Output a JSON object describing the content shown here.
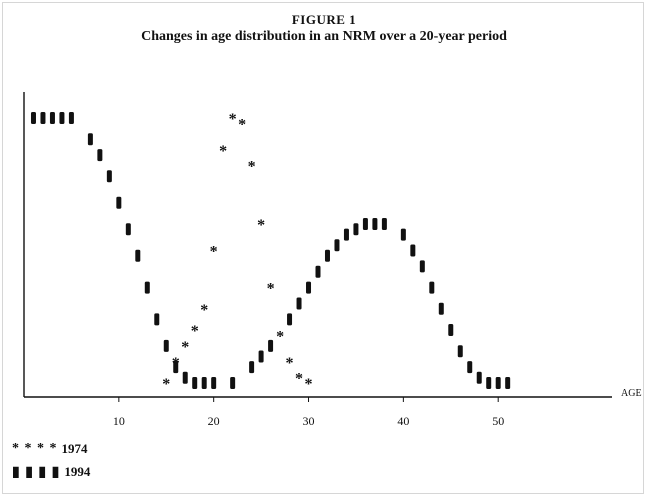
{
  "figure_label": "FIGURE 1",
  "chart_data": {
    "type": "line",
    "title": "Changes in age distribution in an NRM over a 20-year period",
    "xlabel": "AGE",
    "ylabel": "",
    "xlim": [
      0,
      62
    ],
    "ylim": [
      0,
      100
    ],
    "x_ticks": [
      10,
      20,
      30,
      40,
      50
    ],
    "x_tick_labels": [
      "10",
      "20",
      "30",
      "40",
      "50"
    ],
    "y_ticks_visible": false,
    "grid": false,
    "legend_position": "bottom-left",
    "series": [
      {
        "name": "1974",
        "marker": "*",
        "color": "#111111",
        "points": [
          [
            15,
            0
          ],
          [
            16,
            8
          ],
          [
            17,
            14
          ],
          [
            18,
            20
          ],
          [
            19,
            28
          ],
          [
            20,
            50
          ],
          [
            21,
            88
          ],
          [
            22,
            100
          ],
          [
            23,
            98
          ],
          [
            24,
            82
          ],
          [
            25,
            60
          ],
          [
            26,
            36
          ],
          [
            27,
            18
          ],
          [
            28,
            8
          ],
          [
            29,
            2
          ],
          [
            30,
            0
          ]
        ]
      },
      {
        "name": "1994",
        "marker": "bar",
        "color": "#111111",
        "points": [
          [
            1,
            100
          ],
          [
            2,
            100
          ],
          [
            3,
            100
          ],
          [
            4,
            100
          ],
          [
            5,
            100
          ],
          [
            7,
            92
          ],
          [
            8,
            86
          ],
          [
            9,
            78
          ],
          [
            10,
            68
          ],
          [
            11,
            58
          ],
          [
            12,
            48
          ],
          [
            13,
            36
          ],
          [
            14,
            24
          ],
          [
            15,
            14
          ],
          [
            16,
            6
          ],
          [
            17,
            2
          ],
          [
            18,
            0
          ],
          [
            19,
            0
          ],
          [
            20,
            0
          ],
          [
            22,
            0
          ],
          [
            24,
            6
          ],
          [
            25,
            10
          ],
          [
            26,
            14
          ],
          [
            28,
            24
          ],
          [
            29,
            30
          ],
          [
            30,
            36
          ],
          [
            31,
            42
          ],
          [
            32,
            48
          ],
          [
            33,
            52
          ],
          [
            34,
            56
          ],
          [
            35,
            58
          ],
          [
            36,
            60
          ],
          [
            37,
            60
          ],
          [
            38,
            60
          ],
          [
            40,
            56
          ],
          [
            41,
            50
          ],
          [
            42,
            44
          ],
          [
            43,
            36
          ],
          [
            44,
            28
          ],
          [
            45,
            20
          ],
          [
            46,
            12
          ],
          [
            47,
            6
          ],
          [
            48,
            2
          ],
          [
            49,
            0
          ],
          [
            50,
            0
          ],
          [
            51,
            0
          ]
        ]
      }
    ]
  },
  "legend": [
    {
      "marks": "* * * *",
      "label": "1974"
    },
    {
      "marks": "▮ ▮ ▮ ▮",
      "label": "1994"
    }
  ]
}
